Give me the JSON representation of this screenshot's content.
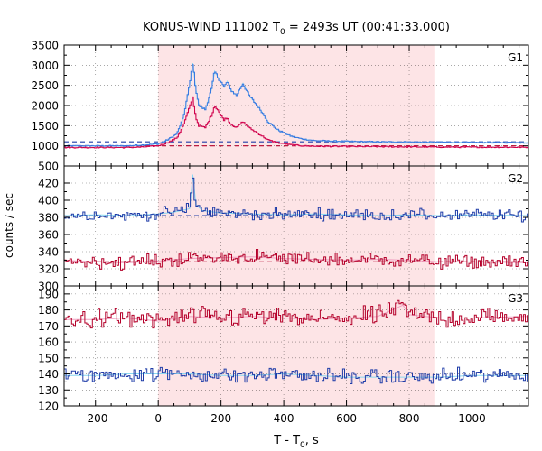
{
  "chart_data": {
    "type": "line",
    "title_main": "KONUS-WIND 111002 T",
    "title_sub": "0",
    "title_rest": " = 2493s UT (00:41:33.000)",
    "xlabel_main": "T - T",
    "xlabel_sub": "0",
    "xlabel_rest": ", s",
    "ylabel": "counts / sec",
    "xlim": [
      -300,
      1180
    ],
    "x_ticks": [
      -200,
      0,
      200,
      400,
      600,
      800,
      1000
    ],
    "x_tick_labels": [
      "-200",
      "0",
      "200",
      "400",
      "600",
      "800",
      "1000"
    ],
    "shaded_interval": [
      0,
      880
    ],
    "colors": {
      "shade": "#fde4e6",
      "red_series": "#b4002a",
      "blue_series": "#1f3ca8",
      "g1_blue": "#3a78e0",
      "g1_red": "#d0004a",
      "fit_light": "#8ad8f0",
      "fit_pink": "#f0a0c0"
    },
    "panels": [
      {
        "name": "G1",
        "ylim": [
          500,
          3500
        ],
        "y_ticks": [
          500,
          1000,
          1500,
          2000,
          2500,
          3000,
          3500
        ],
        "y_tick_labels": [
          "500",
          "1000",
          "1500",
          "2000",
          "2500",
          "3000",
          "3500"
        ],
        "background_levels": [
          {
            "series": "blue",
            "value": 1100
          },
          {
            "series": "red",
            "value": 1000
          }
        ],
        "series": [
          {
            "color": "blue",
            "x": [
              -300,
              -200,
              -100,
              -50,
              0,
              30,
              60,
              80,
              100,
              110,
              120,
              130,
              150,
              170,
              180,
              190,
              200,
              210,
              220,
              230,
              250,
              270,
              290,
              310,
              330,
              350,
              380,
              420,
              460,
              500,
              600,
              700,
              800,
              900,
              1000,
              1180
            ],
            "values": [
              1000,
              1000,
              1000,
              1020,
              1050,
              1150,
              1300,
              1700,
              2500,
              3050,
              2400,
              2000,
              1900,
              2400,
              2850,
              2700,
              2600,
              2450,
              2600,
              2400,
              2250,
              2550,
              2250,
              2050,
              1850,
              1600,
              1400,
              1250,
              1170,
              1130,
              1110,
              1100,
              1095,
              1090,
              1085,
              1080
            ]
          },
          {
            "color": "red",
            "x": [
              -300,
              -200,
              -100,
              -50,
              0,
              30,
              60,
              80,
              100,
              110,
              120,
              130,
              150,
              170,
              180,
              190,
              200,
              210,
              220,
              230,
              250,
              270,
              290,
              310,
              330,
              350,
              380,
              420,
              460,
              500,
              600,
              700,
              800,
              900,
              1000,
              1180
            ],
            "values": [
              960,
              960,
              960,
              970,
              1000,
              1080,
              1200,
              1500,
              1950,
              2200,
              1700,
              1500,
              1450,
              1750,
              2000,
              1900,
              1750,
              1650,
              1700,
              1550,
              1450,
              1600,
              1450,
              1350,
              1250,
              1150,
              1080,
              1030,
              1000,
              990,
              985,
              980,
              975,
              970,
              968,
              965
            ]
          }
        ]
      },
      {
        "name": "G2",
        "ylim": [
          300,
          440
        ],
        "y_ticks": [
          300,
          320,
          340,
          360,
          380,
          400,
          420
        ],
        "y_tick_labels": [
          "300",
          "320",
          "340",
          "360",
          "380",
          "400",
          "420"
        ],
        "background_levels": [
          {
            "series": "blue",
            "value": 382
          },
          {
            "series": "red",
            "value": 328
          }
        ],
        "series": [
          {
            "color": "blue",
            "x": [
              -300,
              -200,
              -100,
              0,
              50,
              100,
              110,
              120,
              140,
              200,
              300,
              400,
              500,
              600,
              700,
              800,
              900,
              1000,
              1180
            ],
            "values": [
              382,
              383,
              382,
              384,
              386,
              390,
              430,
              395,
              388,
              385,
              384,
              383,
              384,
              383,
              382,
              383,
              382,
              383,
              382
            ]
          },
          {
            "color": "red",
            "x": [
              -300,
              -200,
              -100,
              0,
              100,
              200,
              300,
              400,
              500,
              600,
              700,
              800,
              900,
              1000,
              1180
            ],
            "values": [
              330,
              328,
              327,
              329,
              332,
              333,
              334,
              332,
              331,
              330,
              331,
              330,
              328,
              328,
              327
            ]
          }
        ]
      },
      {
        "name": "G3",
        "ylim": [
          120,
          195
        ],
        "y_ticks": [
          120,
          130,
          140,
          150,
          160,
          170,
          180,
          190
        ],
        "y_tick_labels": [
          "120",
          "130",
          "140",
          "150",
          "160",
          "170",
          "180",
          "190"
        ],
        "background_levels": [],
        "series": [
          {
            "color": "red",
            "x": [
              -300,
              -200,
              -100,
              0,
              100,
              200,
              300,
              400,
              500,
              600,
              700,
              780,
              800,
              900,
              1000,
              1180
            ],
            "values": [
              174,
              174,
              175,
              173,
              176,
              175,
              176,
              175,
              174,
              175,
              176,
              183,
              177,
              175,
              175,
              176
            ]
          },
          {
            "color": "blue",
            "x": [
              -300,
              -200,
              -100,
              0,
              100,
              200,
              300,
              400,
              500,
              600,
              700,
              800,
              900,
              1000,
              1180
            ],
            "values": [
              139,
              139,
              140,
              140,
              140,
              139,
              139,
              140,
              139,
              138,
              138,
              138,
              138,
              139,
              139
            ]
          }
        ]
      }
    ]
  }
}
